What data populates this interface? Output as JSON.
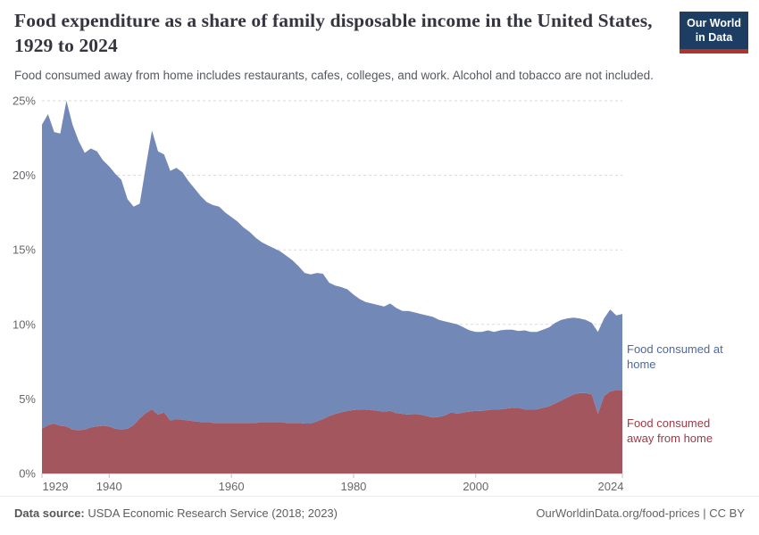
{
  "header": {
    "title": "Food expenditure as a share of family disposable income in the United States, 1929 to 2024",
    "subtitle": "Food consumed away from home includes restaurants, cafes, colleges, and work. Alcohol and tobacco are not included.",
    "logo": {
      "line1": "Our World",
      "line2": "in Data",
      "bg_color": "#1d3d63",
      "bar_color": "#b0332c"
    }
  },
  "chart_data": {
    "type": "area",
    "stacked": true,
    "title": "Food expenditure as a share of family disposable income in the United States, 1929 to 2024",
    "xlabel": "",
    "ylabel": "",
    "xlim": [
      1929,
      2024
    ],
    "ylim": [
      0,
      25
    ],
    "grid": true,
    "legend_position": "right",
    "x": [
      1929,
      1930,
      1931,
      1932,
      1933,
      1934,
      1935,
      1936,
      1937,
      1938,
      1939,
      1940,
      1941,
      1942,
      1943,
      1944,
      1945,
      1946,
      1947,
      1948,
      1949,
      1950,
      1951,
      1952,
      1953,
      1954,
      1955,
      1956,
      1957,
      1958,
      1959,
      1960,
      1961,
      1962,
      1963,
      1964,
      1965,
      1966,
      1967,
      1968,
      1969,
      1970,
      1971,
      1972,
      1973,
      1974,
      1975,
      1976,
      1977,
      1978,
      1979,
      1980,
      1981,
      1982,
      1983,
      1984,
      1985,
      1986,
      1987,
      1988,
      1989,
      1990,
      1991,
      1992,
      1993,
      1994,
      1995,
      1996,
      1997,
      1998,
      1999,
      2000,
      2001,
      2002,
      2003,
      2004,
      2005,
      2006,
      2007,
      2008,
      2009,
      2010,
      2011,
      2012,
      2013,
      2014,
      2015,
      2016,
      2017,
      2018,
      2019,
      2020,
      2021,
      2022,
      2023,
      2024
    ],
    "series": [
      {
        "name": "Food consumed away from home",
        "legend_lines": [
          "Food consumed",
          "away from home"
        ],
        "color": "#a4565f",
        "label_color": "#9d3a45",
        "values": [
          3.0,
          3.25,
          3.35,
          3.2,
          3.15,
          2.95,
          2.9,
          2.95,
          3.1,
          3.15,
          3.2,
          3.15,
          3.0,
          2.95,
          3.0,
          3.25,
          3.7,
          4.05,
          4.3,
          3.95,
          4.1,
          3.55,
          3.65,
          3.6,
          3.55,
          3.5,
          3.45,
          3.45,
          3.4,
          3.4,
          3.4,
          3.4,
          3.4,
          3.4,
          3.4,
          3.4,
          3.45,
          3.45,
          3.45,
          3.45,
          3.4,
          3.4,
          3.4,
          3.35,
          3.35,
          3.5,
          3.65,
          3.85,
          4.0,
          4.1,
          4.2,
          4.25,
          4.3,
          4.3,
          4.25,
          4.2,
          4.15,
          4.2,
          4.05,
          4.0,
          3.95,
          4.0,
          3.95,
          3.85,
          3.75,
          3.8,
          3.9,
          4.1,
          4.0,
          4.1,
          4.15,
          4.2,
          4.2,
          4.25,
          4.3,
          4.3,
          4.35,
          4.4,
          4.4,
          4.3,
          4.3,
          4.3,
          4.4,
          4.5,
          4.7,
          4.9,
          5.1,
          5.3,
          5.4,
          5.4,
          5.3,
          4.0,
          5.2,
          5.5,
          5.6,
          5.6
        ]
      },
      {
        "name": "Food consumed at home",
        "legend_lines": [
          "Food consumed at",
          "home"
        ],
        "color": "#7288b7",
        "label_color": "#4d689f",
        "values": [
          20.4,
          20.85,
          19.55,
          19.6,
          21.85,
          20.45,
          19.4,
          18.55,
          18.7,
          18.45,
          17.8,
          17.45,
          17.1,
          16.75,
          15.4,
          14.65,
          14.4,
          16.55,
          18.7,
          17.65,
          17.3,
          16.75,
          16.85,
          16.6,
          16.05,
          15.6,
          15.15,
          14.75,
          14.6,
          14.5,
          14.1,
          13.8,
          13.5,
          13.1,
          12.8,
          12.4,
          12.05,
          11.85,
          11.65,
          11.45,
          11.2,
          10.9,
          10.5,
          10.1,
          10.0,
          9.95,
          9.75,
          8.95,
          8.6,
          8.4,
          8.15,
          7.75,
          7.4,
          7.2,
          7.15,
          7.1,
          7.05,
          7.2,
          7.05,
          6.9,
          6.95,
          6.8,
          6.75,
          6.75,
          6.75,
          6.5,
          6.3,
          6.0,
          6.0,
          5.7,
          5.45,
          5.3,
          5.3,
          5.35,
          5.2,
          5.3,
          5.3,
          5.25,
          5.15,
          5.3,
          5.2,
          5.2,
          5.25,
          5.3,
          5.4,
          5.4,
          5.3,
          5.15,
          5.0,
          4.9,
          4.8,
          5.5,
          5.2,
          5.5,
          5.0,
          5.1
        ]
      }
    ],
    "yticks": [
      {
        "value": 0,
        "label": "0%"
      },
      {
        "value": 5,
        "label": "5%"
      },
      {
        "value": 10,
        "label": "10%"
      },
      {
        "value": 15,
        "label": "15%"
      },
      {
        "value": 20,
        "label": "20%"
      },
      {
        "value": 25,
        "label": "25%"
      }
    ],
    "xticks": [
      {
        "value": 1929,
        "label": "1929"
      },
      {
        "value": 1940,
        "label": "1940"
      },
      {
        "value": 1960,
        "label": "1960"
      },
      {
        "value": 1980,
        "label": "1980"
      },
      {
        "value": 2000,
        "label": "2000"
      },
      {
        "value": 2024,
        "label": "2024"
      }
    ]
  },
  "footer": {
    "source_label": "Data source:",
    "source_value": " USDA Economic Research Service (2018; 2023)",
    "credit": "OurWorldinData.org/food-prices | CC BY"
  }
}
